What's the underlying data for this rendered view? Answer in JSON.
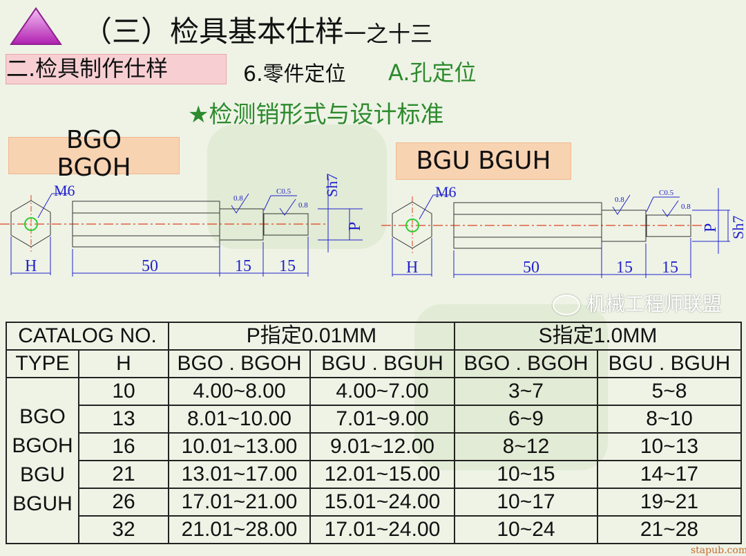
{
  "header": {
    "title": "（三）检具基本仕样",
    "title_suffix": "一之十三"
  },
  "section": {
    "label": "二.检具制作仕样",
    "item": "6.零件定位",
    "sub_item": "A.孔定位",
    "heading": "★检测销形式与设计标准"
  },
  "drawings": [
    {
      "label_lines": [
        "BGO",
        "BGOH"
      ],
      "thread": "M6",
      "dims": {
        "hex": "H",
        "body": "50",
        "mid": "15",
        "tip": "15",
        "pin": "P",
        "shoulder": "Sh7"
      },
      "roughness": [
        "0.8",
        "0.8"
      ],
      "chamfer": "C0.5"
    },
    {
      "label": "BGU  BGUH",
      "thread": "M6",
      "dims": {
        "hex": "H",
        "body": "50",
        "mid": "15",
        "tip": "15",
        "pin": "P",
        "shoulder": "Sh7"
      },
      "roughness": [
        "0.8",
        "0.8"
      ],
      "chamfer": "C0.5"
    }
  ],
  "table": {
    "header1": [
      "CATALOG  NO.",
      "P指定0.01MM",
      "S指定1.0MM"
    ],
    "header2": [
      "TYPE",
      "H",
      "BGO . BGOH",
      "BGU .  BGUH",
      "BGO . BGOH",
      "BGU .  BGUH"
    ],
    "type_lines": [
      "BGO",
      "BGOH",
      "BGU",
      "BGUH"
    ],
    "rows": [
      [
        "10",
        "4.00~8.00",
        "4.00~7.00",
        "3~7",
        "5~8"
      ],
      [
        "13",
        "8.01~10.00",
        "7.01~9.00",
        "6~9",
        "8~10"
      ],
      [
        "16",
        "10.01~13.00",
        "9.01~12.00",
        "8~12",
        "10~13"
      ],
      [
        "21",
        "13.01~17.00",
        "12.01~15.00",
        "10~15",
        "14~17"
      ],
      [
        "26",
        "17.01~21.00",
        "15.01~24.00",
        "10~17",
        "19~21"
      ],
      [
        "32",
        "21.01~28.00",
        "17.01~24.00",
        "10~24",
        "21~28"
      ]
    ]
  },
  "watermark": {
    "text": "机械工程师联盟",
    "site": "stapub.com"
  },
  "colors": {
    "title_triangle": "#c040c0",
    "green_text": "#2d8a2d",
    "dim_blue": "#2222cc",
    "centerline": "#e04020"
  }
}
